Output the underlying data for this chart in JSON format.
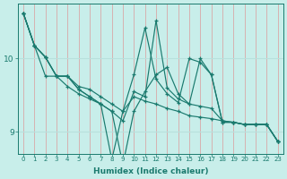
{
  "xlabel": "Humidex (Indice chaleur)",
  "ylabel": "",
  "background_color": "#c8eeea",
  "line_color": "#1a7a6e",
  "grid_color_v": "#d8a8a8",
  "grid_color_h": "#b8e0dc",
  "xlim": [
    -0.5,
    23.5
  ],
  "ylim": [
    8.7,
    10.75
  ],
  "yticks": [
    9,
    10
  ],
  "xticks": [
    0,
    1,
    2,
    3,
    4,
    5,
    6,
    7,
    8,
    9,
    10,
    11,
    12,
    13,
    14,
    15,
    16,
    17,
    18,
    19,
    20,
    21,
    22,
    23
  ],
  "series": [
    [
      10.62,
      10.18,
      10.02,
      9.76,
      9.76,
      9.62,
      9.58,
      9.48,
      9.38,
      9.28,
      9.48,
      9.42,
      9.38,
      9.32,
      9.28,
      9.22,
      9.2,
      9.18,
      9.15,
      9.13,
      9.1,
      9.1,
      9.1,
      8.87
    ],
    [
      10.62,
      10.18,
      9.76,
      9.76,
      9.62,
      9.52,
      9.45,
      9.38,
      9.28,
      9.15,
      9.55,
      9.48,
      10.52,
      9.6,
      9.45,
      9.38,
      10.0,
      9.78,
      9.13,
      9.13,
      9.1,
      9.1,
      9.1,
      8.87
    ],
    [
      10.62,
      10.18,
      10.02,
      9.76,
      9.76,
      9.58,
      9.48,
      9.38,
      8.62,
      9.28,
      9.78,
      10.42,
      9.72,
      9.52,
      9.4,
      10.0,
      9.95,
      9.78,
      9.13,
      9.13,
      9.1,
      9.1,
      9.1,
      8.87
    ],
    [
      10.62,
      10.18,
      10.02,
      9.76,
      9.76,
      9.58,
      9.48,
      9.38,
      9.28,
      8.55,
      9.28,
      9.55,
      9.78,
      9.88,
      9.52,
      9.38,
      9.35,
      9.32,
      9.15,
      9.13,
      9.1,
      9.1,
      9.1,
      8.87
    ]
  ]
}
